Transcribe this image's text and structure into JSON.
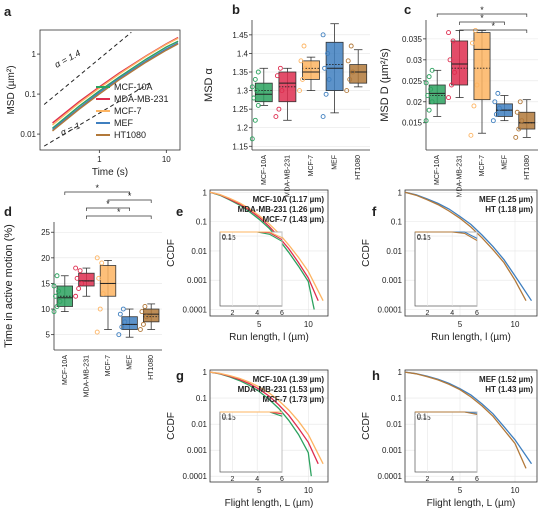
{
  "colors": {
    "green": "#2ca25f",
    "red": "#de2d4f",
    "orange": "#fdb462",
    "blue": "#3f7fbf",
    "brown": "#b2793a"
  },
  "chart_data": [
    {
      "panel": "a",
      "type": "line",
      "scale": "log-log",
      "xlabel": "Time (s)",
      "ylabel": "MSD (µm²)",
      "xlim": [
        0.13,
        16
      ],
      "ylim": [
        0.004,
        4
      ],
      "x_ticks": [
        "1",
        "10"
      ],
      "y_ticks": [
        "0.01",
        "0.1",
        "1"
      ],
      "series": [
        {
          "name": "MCF-10A",
          "color": "#2ca25f",
          "x": [
            0.2,
            0.5,
            1,
            2,
            5,
            10,
            15
          ],
          "y": [
            0.014,
            0.05,
            0.12,
            0.27,
            0.75,
            1.5,
            2.1
          ]
        },
        {
          "name": "MDA-MB-231",
          "color": "#de2d4f",
          "x": [
            0.2,
            0.5,
            1,
            2,
            5,
            10,
            15
          ],
          "y": [
            0.019,
            0.065,
            0.15,
            0.34,
            0.9,
            1.8,
            2.6
          ]
        },
        {
          "name": "MCF-7",
          "color": "#fdb462",
          "x": [
            0.2,
            0.5,
            1,
            2,
            5,
            10,
            15
          ],
          "y": [
            0.017,
            0.06,
            0.14,
            0.32,
            0.88,
            1.75,
            2.5
          ]
        },
        {
          "name": "MEF",
          "color": "#3f7fbf",
          "x": [
            0.2,
            0.5,
            1,
            2,
            5,
            10,
            15
          ],
          "y": [
            0.013,
            0.045,
            0.11,
            0.25,
            0.68,
            1.35,
            1.9
          ]
        },
        {
          "name": "HT1080",
          "color": "#b2793a",
          "x": [
            0.2,
            0.5,
            1,
            2,
            5,
            10,
            15
          ],
          "y": [
            0.012,
            0.042,
            0.1,
            0.23,
            0.63,
            1.25,
            1.8
          ]
        }
      ],
      "annotations": [
        "α = 1.4",
        "α = 1"
      ]
    },
    {
      "panel": "b",
      "type": "box",
      "ylabel": "MSD α",
      "ylim": [
        1.14,
        1.49
      ],
      "y_ticks": [
        "1.15",
        "1.2",
        "1.25",
        "1.3",
        "1.35",
        "1.4",
        "1.45"
      ],
      "categories": [
        "MCF-10A",
        "MDA-MB-231",
        "MCF-7",
        "MEF",
        "HT1080"
      ],
      "boxes": [
        {
          "min": 1.26,
          "q1": 1.27,
          "median": 1.29,
          "mean": 1.3,
          "q3": 1.32,
          "max": 1.36,
          "points": [
            1.17,
            1.22,
            1.26,
            1.28,
            1.3,
            1.31,
            1.33,
            1.35
          ]
        },
        {
          "min": 1.22,
          "q1": 1.27,
          "median": 1.32,
          "mean": 1.31,
          "q3": 1.35,
          "max": 1.36,
          "points": [
            1.23,
            1.25,
            1.3,
            1.34,
            1.36
          ]
        },
        {
          "min": 1.3,
          "q1": 1.33,
          "median": 1.35,
          "mean": 1.36,
          "q3": 1.38,
          "max": 1.39,
          "points": [
            1.3,
            1.33,
            1.36,
            1.38,
            1.42
          ]
        },
        {
          "min": 1.24,
          "q1": 1.3,
          "median": 1.36,
          "mean": 1.37,
          "q3": 1.43,
          "max": 1.48,
          "points": [
            1.23,
            1.29,
            1.33,
            1.36,
            1.4,
            1.45
          ]
        },
        {
          "min": 1.31,
          "q1": 1.32,
          "median": 1.35,
          "mean": 1.35,
          "q3": 1.37,
          "max": 1.41,
          "points": [
            1.3,
            1.33,
            1.35,
            1.38,
            1.42
          ]
        }
      ]
    },
    {
      "panel": "c",
      "type": "box",
      "ylabel": "MSD D (µm²/s)",
      "ylim": [
        0.0085,
        0.0395
      ],
      "y_ticks": [
        "0.015",
        "0.02",
        "0.025",
        "0.03",
        "0.035"
      ],
      "categories": [
        "MCF-10A",
        "MDA-MB-231",
        "MCF-7",
        "MEF",
        "HT1080"
      ],
      "boxes": [
        {
          "min": 0.0165,
          "q1": 0.0195,
          "median": 0.022,
          "mean": 0.0215,
          "q3": 0.024,
          "max": 0.0275,
          "points": [
            0.0155,
            0.018,
            0.02,
            0.0215,
            0.023,
            0.0245,
            0.026,
            0.0275
          ]
        },
        {
          "min": 0.021,
          "q1": 0.024,
          "median": 0.029,
          "mean": 0.028,
          "q3": 0.0345,
          "max": 0.037,
          "points": [
            0.021,
            0.024,
            0.027,
            0.03,
            0.0345,
            0.0365
          ]
        },
        {
          "min": 0.0125,
          "q1": 0.0205,
          "median": 0.0325,
          "mean": 0.028,
          "q3": 0.0365,
          "max": 0.037,
          "points": [
            0.012,
            0.019,
            0.024,
            0.034,
            0.037
          ]
        },
        {
          "min": 0.0155,
          "q1": 0.0165,
          "median": 0.018,
          "mean": 0.018,
          "q3": 0.0195,
          "max": 0.0215,
          "points": [
            0.0155,
            0.017,
            0.0185,
            0.02,
            0.022
          ]
        },
        {
          "min": 0.0115,
          "q1": 0.0135,
          "median": 0.015,
          "mean": 0.015,
          "q3": 0.0175,
          "max": 0.0205,
          "points": [
            0.0115,
            0.0135,
            0.0155,
            0.0175,
            0.02
          ]
        }
      ],
      "significance": [
        {
          "from": 1,
          "to": 4,
          "label": "*"
        },
        {
          "from": 1,
          "to": 3,
          "label": "*"
        },
        {
          "from": 0,
          "to": 4,
          "label": "*"
        }
      ]
    },
    {
      "panel": "d",
      "type": "box",
      "ylabel": "Time in active motion (%)",
      "ylim": [
        2,
        27
      ],
      "y_ticks": [
        "5",
        "10",
        "15",
        "20",
        "25"
      ],
      "categories": [
        "MCF-10A",
        "MDA-MB-231",
        "MCF-7",
        "MEF",
        "HT1080"
      ],
      "boxes": [
        {
          "min": 9.5,
          "q1": 10.5,
          "median": 12.2,
          "mean": 12.5,
          "q3": 14.5,
          "max": 16.5,
          "points": [
            9.5,
            10.5,
            11.5,
            12.5,
            13.5,
            14.5,
            16.5
          ]
        },
        {
          "min": 12.5,
          "q1": 14.5,
          "median": 15.5,
          "mean": 15.5,
          "q3": 17,
          "max": 18,
          "points": [
            12.5,
            14,
            15,
            16,
            17.5,
            18
          ]
        },
        {
          "min": 6,
          "q1": 12.5,
          "median": 15,
          "mean": 15,
          "q3": 18.5,
          "max": 19.5,
          "points": [
            5.5,
            10,
            13,
            16,
            19,
            20
          ]
        },
        {
          "min": 4.5,
          "q1": 6,
          "median": 7,
          "mean": 7,
          "q3": 8.5,
          "max": 10,
          "points": [
            5,
            6.5,
            7.5,
            9,
            10
          ]
        },
        {
          "min": 6,
          "q1": 7.5,
          "median": 9,
          "mean": 8.5,
          "q3": 10,
          "max": 11,
          "points": [
            6,
            7,
            8.5,
            9.5,
            10.5
          ]
        }
      ],
      "significance": [
        {
          "from": 1,
          "to": 4,
          "label": "*"
        },
        {
          "from": 1,
          "to": 3,
          "label": "*"
        },
        {
          "from": 2,
          "to": 4,
          "label": "*"
        },
        {
          "from": 0,
          "to": 3,
          "label": "*"
        }
      ]
    },
    {
      "panel": "e",
      "type": "line",
      "scale": "x-linear y-log",
      "xlabel": "Run length, l (µm)",
      "ylabel": "CCDF",
      "xlim": [
        0,
        12
      ],
      "ylim": [
        6e-05,
        1.2
      ],
      "x_ticks": [
        "0",
        "5",
        "10"
      ],
      "y_ticks": [
        "0.0001",
        "0.001",
        "0.01",
        "0.1",
        "1"
      ],
      "series": [
        {
          "name": "MCF-10A (1.17 µm)",
          "color": "#2ca25f",
          "x": [
            0,
            1,
            2,
            3,
            4,
            5,
            6,
            7,
            8,
            9,
            10,
            10.6
          ],
          "y": [
            1,
            0.8,
            0.55,
            0.37,
            0.22,
            0.12,
            0.06,
            0.025,
            0.009,
            0.003,
            0.0009,
            0.0001
          ]
        },
        {
          "name": "MDA-MB-231 (1.26 µm)",
          "color": "#de2d4f",
          "x": [
            0,
            1,
            2,
            3,
            4,
            5,
            6,
            7,
            8,
            9,
            10,
            11
          ],
          "y": [
            1,
            0.82,
            0.58,
            0.4,
            0.25,
            0.14,
            0.07,
            0.03,
            0.012,
            0.004,
            0.0012,
            0.0002
          ]
        },
        {
          "name": "MCF-7 (1.43 µm)",
          "color": "#fdb462",
          "x": [
            0,
            1,
            2,
            3,
            4,
            5,
            6,
            7,
            8,
            9,
            10,
            11.5
          ],
          "y": [
            1,
            0.84,
            0.62,
            0.44,
            0.28,
            0.16,
            0.085,
            0.04,
            0.016,
            0.006,
            0.002,
            0.0002
          ]
        }
      ],
      "inset": {
        "xlim": [
          1,
          6
        ],
        "ylim": [
          0.0001,
          0.15
        ],
        "x_ticks": [
          "2",
          "4",
          "6"
        ],
        "y_ticks": [
          "0.15",
          "0.1"
        ]
      }
    },
    {
      "panel": "f",
      "type": "line",
      "scale": "x-linear y-log",
      "xlabel": "Run length, l (µm)",
      "ylabel": "CCDF",
      "xlim": [
        0,
        12
      ],
      "ylim": [
        6e-05,
        1.2
      ],
      "x_ticks": [
        "0",
        "5",
        "10"
      ],
      "y_ticks": [
        "0.0001",
        "0.001",
        "0.01",
        "0.1",
        "1"
      ],
      "series": [
        {
          "name": "MEF (1.25 µm)",
          "color": "#3f7fbf",
          "x": [
            0,
            1,
            2,
            3,
            4,
            5,
            6,
            7,
            8,
            9,
            10,
            11.5
          ],
          "y": [
            1,
            0.82,
            0.6,
            0.42,
            0.27,
            0.15,
            0.08,
            0.035,
            0.014,
            0.005,
            0.0014,
            0.0002
          ]
        },
        {
          "name": "HT (1.18 µm)",
          "color": "#b2793a",
          "x": [
            0,
            1,
            2,
            3,
            4,
            5,
            6,
            7,
            8,
            9,
            10,
            11
          ],
          "y": [
            1,
            0.8,
            0.56,
            0.38,
            0.23,
            0.13,
            0.065,
            0.028,
            0.011,
            0.004,
            0.001,
            0.0002
          ]
        }
      ],
      "inset": {
        "xlim": [
          1,
          6
        ],
        "ylim": [
          0.0001,
          0.15
        ],
        "x_ticks": [
          "2",
          "4",
          "6"
        ],
        "y_ticks": [
          "0.15",
          "0.1"
        ]
      }
    },
    {
      "panel": "g",
      "type": "line",
      "scale": "x-linear y-log",
      "xlabel": "Flight length, L (µm)",
      "ylabel": "CCDF",
      "xlim": [
        0,
        12
      ],
      "ylim": [
        6e-05,
        1.2
      ],
      "x_ticks": [
        "0",
        "5",
        "10"
      ],
      "y_ticks": [
        "0.0001",
        "0.001",
        "0.01",
        "0.1",
        "1"
      ],
      "series": [
        {
          "name": "MCF-10A (1.39 µm)",
          "color": "#2ca25f",
          "x": [
            0,
            1,
            2,
            3,
            4,
            5,
            6,
            7,
            8,
            9,
            10,
            10.3
          ],
          "y": [
            1,
            0.85,
            0.65,
            0.47,
            0.31,
            0.18,
            0.09,
            0.04,
            0.014,
            0.004,
            0.0008,
            0.0001
          ]
        },
        {
          "name": "MDA-MB-231 (1.53 µm)",
          "color": "#de2d4f",
          "x": [
            0,
            1,
            2,
            3,
            4,
            5,
            6,
            7,
            8,
            9,
            10,
            11
          ],
          "y": [
            1,
            0.87,
            0.69,
            0.52,
            0.36,
            0.22,
            0.12,
            0.055,
            0.022,
            0.007,
            0.002,
            0.0003
          ]
        },
        {
          "name": "MCF-7 (1.73 µm)",
          "color": "#fdb462",
          "x": [
            0,
            1,
            2,
            3,
            4,
            5,
            6,
            7,
            8,
            9,
            10,
            11.5
          ],
          "y": [
            1,
            0.89,
            0.73,
            0.57,
            0.41,
            0.27,
            0.16,
            0.08,
            0.035,
            0.013,
            0.004,
            0.0003
          ]
        }
      ],
      "inset": {
        "xlim": [
          1,
          6
        ],
        "ylim": [
          0.0001,
          0.15
        ],
        "x_ticks": [
          "2",
          "4",
          "6"
        ],
        "y_ticks": [
          "0.15",
          "0.1"
        ]
      }
    },
    {
      "panel": "h",
      "type": "line",
      "scale": "x-linear y-log",
      "xlabel": "Flight length, L (µm)",
      "ylabel": "CCDF",
      "xlim": [
        0,
        12
      ],
      "ylim": [
        6e-05,
        1.2
      ],
      "x_ticks": [
        "0",
        "5",
        "10"
      ],
      "y_ticks": [
        "0.0001",
        "0.001",
        "0.01",
        "0.1",
        "1"
      ],
      "series": [
        {
          "name": "MEF (1.52 µm)",
          "color": "#3f7fbf",
          "x": [
            0,
            1,
            2,
            3,
            4,
            5,
            6,
            7,
            8,
            9,
            10,
            11.5
          ],
          "y": [
            1,
            0.87,
            0.7,
            0.53,
            0.37,
            0.23,
            0.13,
            0.06,
            0.025,
            0.008,
            0.0025,
            0.0003
          ]
        },
        {
          "name": "HT (1.43 µm)",
          "color": "#b2793a",
          "x": [
            0,
            1,
            2,
            3,
            4,
            5,
            6,
            7,
            8,
            9,
            10,
            11
          ],
          "y": [
            1,
            0.86,
            0.67,
            0.5,
            0.34,
            0.21,
            0.11,
            0.05,
            0.02,
            0.006,
            0.0018,
            0.0002
          ]
        }
      ],
      "inset": {
        "xlim": [
          1,
          6
        ],
        "ylim": [
          0.0001,
          0.15
        ],
        "x_ticks": [
          "2",
          "4",
          "6"
        ],
        "y_ticks": [
          "0.15",
          "0.1"
        ]
      }
    }
  ]
}
